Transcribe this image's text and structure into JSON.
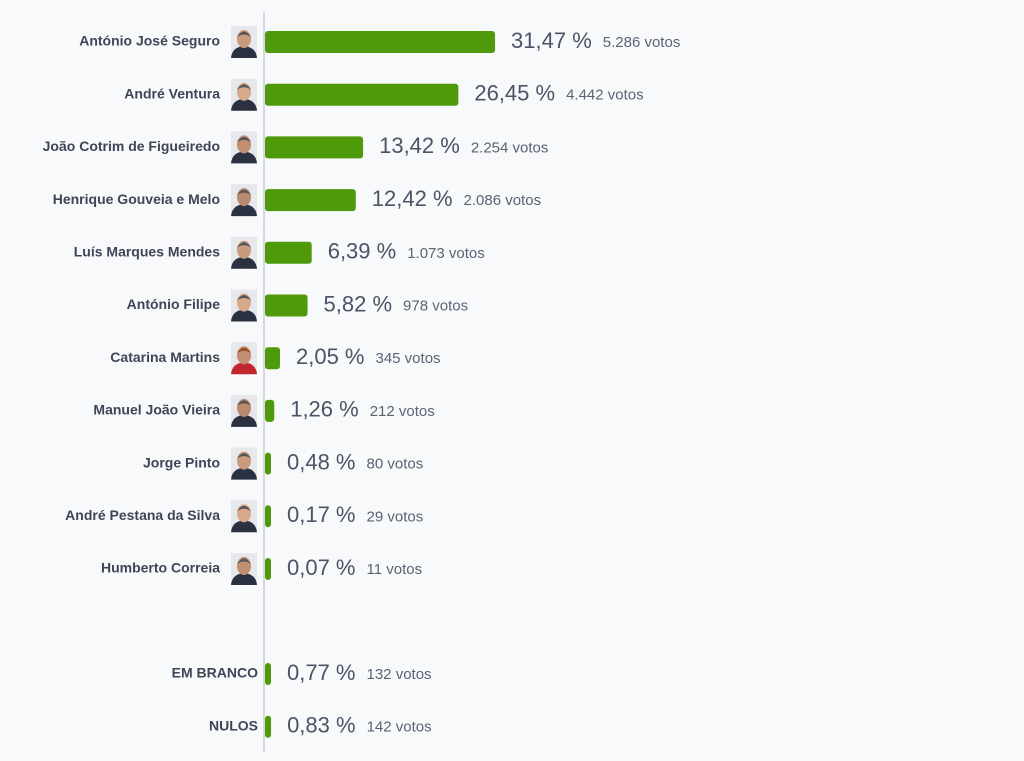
{
  "chart_data": [
    {
      "type": "bar",
      "orientation": "horizontal",
      "photos": true,
      "color": "#4f9a0a",
      "categories": [
        "António José Seguro",
        "André Ventura",
        "João Cotrim de Figueiredo",
        "Henrique Gouveia e Melo",
        "Luís Marques Mendes",
        "António Filipe",
        "Catarina Martins",
        "Manuel João Vieira",
        "Jorge Pinto",
        "André Pestana da Silva",
        "Humberto Correia"
      ],
      "values": [
        31.47,
        26.45,
        13.42,
        12.42,
        6.39,
        5.82,
        2.05,
        1.26,
        0.48,
        0.17,
        0.07
      ],
      "value_labels": [
        "31,47 %",
        "26,45 %",
        "13,42 %",
        "12,42 %",
        "6,39 %",
        "5,82 %",
        "2,05 %",
        "1,26 %",
        "0,48 %",
        "0,17 %",
        "0,07 %"
      ],
      "vote_labels": [
        "5.286 votos",
        "4.442 votos",
        "2.254 votos",
        "2.086 votos",
        "1.073 votos",
        "978 votos",
        "345 votos",
        "212 votos",
        "80 votos",
        "29 votos",
        "11 votos"
      ]
    },
    {
      "type": "bar",
      "orientation": "horizontal",
      "photos": false,
      "color": "#4f9a0a",
      "categories": [
        "EM BRANCO",
        "NULOS"
      ],
      "values": [
        0.77,
        0.83
      ],
      "value_labels": [
        "0,77 %",
        "0,83 %"
      ],
      "vote_labels": [
        "132 votos",
        "142 votos"
      ]
    }
  ]
}
